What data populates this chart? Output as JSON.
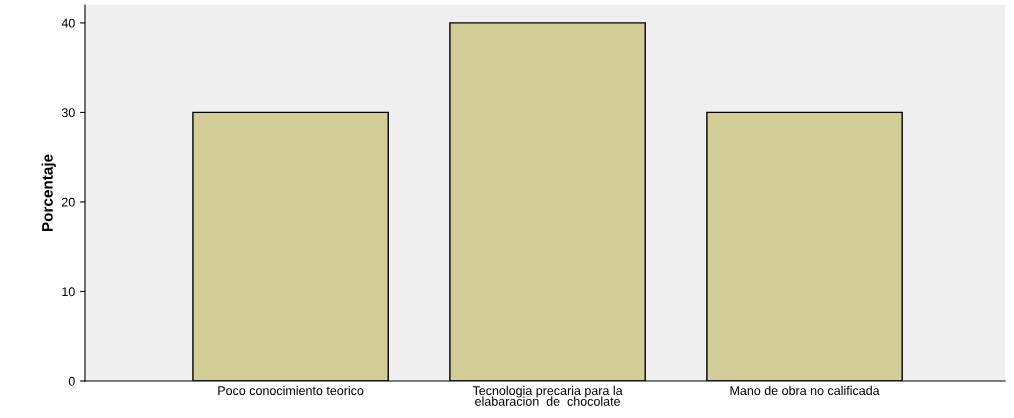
{
  "chart_data": {
    "type": "bar",
    "ylabel": "Porcentaje",
    "categories": [
      "Poco conocimiento teorico",
      "Tecnologia precaria para la\nelabaracion  de  chocolate",
      "Mano de obra no calificada"
    ],
    "values": [
      30,
      40,
      30
    ],
    "color": "#d3ce98",
    "ylim": [
      0,
      42
    ],
    "yticks": [
      0,
      10,
      20,
      30,
      40
    ],
    "grid": false
  }
}
